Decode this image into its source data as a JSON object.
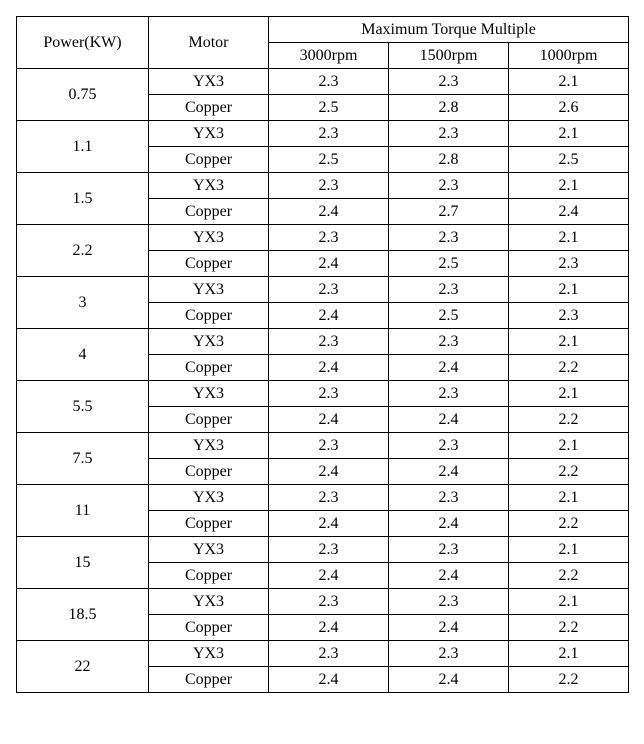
{
  "table": {
    "headers": {
      "power": "Power(KW)",
      "motor": "Motor",
      "torque_group": "Maximum Torque Multiple",
      "rpm": [
        "3000rpm",
        "1500rpm",
        "1000rpm"
      ]
    },
    "motor_labels": [
      "YX3",
      "Copper"
    ],
    "rows": [
      {
        "power": "0.75",
        "yx3": [
          "2.3",
          "2.3",
          "2.1"
        ],
        "copper": [
          "2.5",
          "2.8",
          "2.6"
        ]
      },
      {
        "power": "1.1",
        "yx3": [
          "2.3",
          "2.3",
          "2.1"
        ],
        "copper": [
          "2.5",
          "2.8",
          "2.5"
        ]
      },
      {
        "power": "1.5",
        "yx3": [
          "2.3",
          "2.3",
          "2.1"
        ],
        "copper": [
          "2.4",
          "2.7",
          "2.4"
        ]
      },
      {
        "power": "2.2",
        "yx3": [
          "2.3",
          "2.3",
          "2.1"
        ],
        "copper": [
          "2.4",
          "2.5",
          "2.3"
        ]
      },
      {
        "power": "3",
        "yx3": [
          "2.3",
          "2.3",
          "2.1"
        ],
        "copper": [
          "2.4",
          "2.5",
          "2.3"
        ]
      },
      {
        "power": "4",
        "yx3": [
          "2.3",
          "2.3",
          "2.1"
        ],
        "copper": [
          "2.4",
          "2.4",
          "2.2"
        ]
      },
      {
        "power": "5.5",
        "yx3": [
          "2.3",
          "2.3",
          "2.1"
        ],
        "copper": [
          "2.4",
          "2.4",
          "2.2"
        ]
      },
      {
        "power": "7.5",
        "yx3": [
          "2.3",
          "2.3",
          "2.1"
        ],
        "copper": [
          "2.4",
          "2.4",
          "2.2"
        ]
      },
      {
        "power": "11",
        "yx3": [
          "2.3",
          "2.3",
          "2.1"
        ],
        "copper": [
          "2.4",
          "2.4",
          "2.2"
        ]
      },
      {
        "power": "15",
        "yx3": [
          "2.3",
          "2.3",
          "2.1"
        ],
        "copper": [
          "2.4",
          "2.4",
          "2.2"
        ]
      },
      {
        "power": "18.5",
        "yx3": [
          "2.3",
          "2.3",
          "2.1"
        ],
        "copper": [
          "2.4",
          "2.4",
          "2.2"
        ]
      },
      {
        "power": "22",
        "yx3": [
          "2.3",
          "2.3",
          "2.1"
        ],
        "copper": [
          "2.4",
          "2.4",
          "2.2"
        ]
      }
    ]
  }
}
